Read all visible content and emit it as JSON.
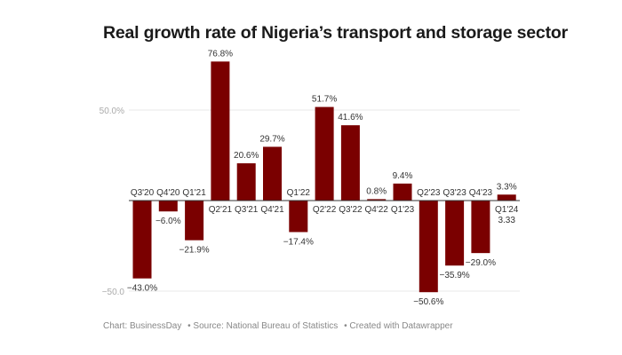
{
  "chart_data": {
    "type": "bar",
    "title": "Real growth rate of Nigeria’s transport and storage sector",
    "xlabel": "",
    "ylabel": "",
    "ylim": [
      -50,
      50
    ],
    "yticks": [
      50,
      -50
    ],
    "ytick_labels": [
      "50.0%",
      "−50.0"
    ],
    "grid": true,
    "categories": [
      "Q3'20",
      "Q4'20",
      "Q1'21",
      "Q2'21",
      "Q3'21",
      "Q4'21",
      "Q1'22",
      "Q2'22",
      "Q3'22",
      "Q4'22",
      "Q1'23",
      "Q2'23",
      "Q3'23",
      "Q4'23",
      "Q1'24"
    ],
    "values": [
      -43.0,
      -6.0,
      -21.9,
      76.8,
      20.6,
      29.7,
      -17.4,
      51.7,
      41.6,
      0.8,
      9.4,
      -50.6,
      -35.9,
      -29.0,
      3.3
    ],
    "value_labels": [
      "−43.0%",
      "−6.0%",
      "−21.9%",
      "76.8%",
      "20.6%",
      "29.7%",
      "−17.4%",
      "51.7%",
      "41.6%",
      "0.8%",
      "9.4%",
      "−50.6%",
      "−35.9%",
      "−29.0%",
      "3.3%"
    ],
    "annotation": {
      "category": "Q1'24",
      "text": "3.33"
    },
    "bar_color": "#7a0000"
  },
  "footer": {
    "chart": "Chart: BusinessDay",
    "source": "• Source: National Bureau of Statistics",
    "created": "• Created with Datawrapper"
  }
}
